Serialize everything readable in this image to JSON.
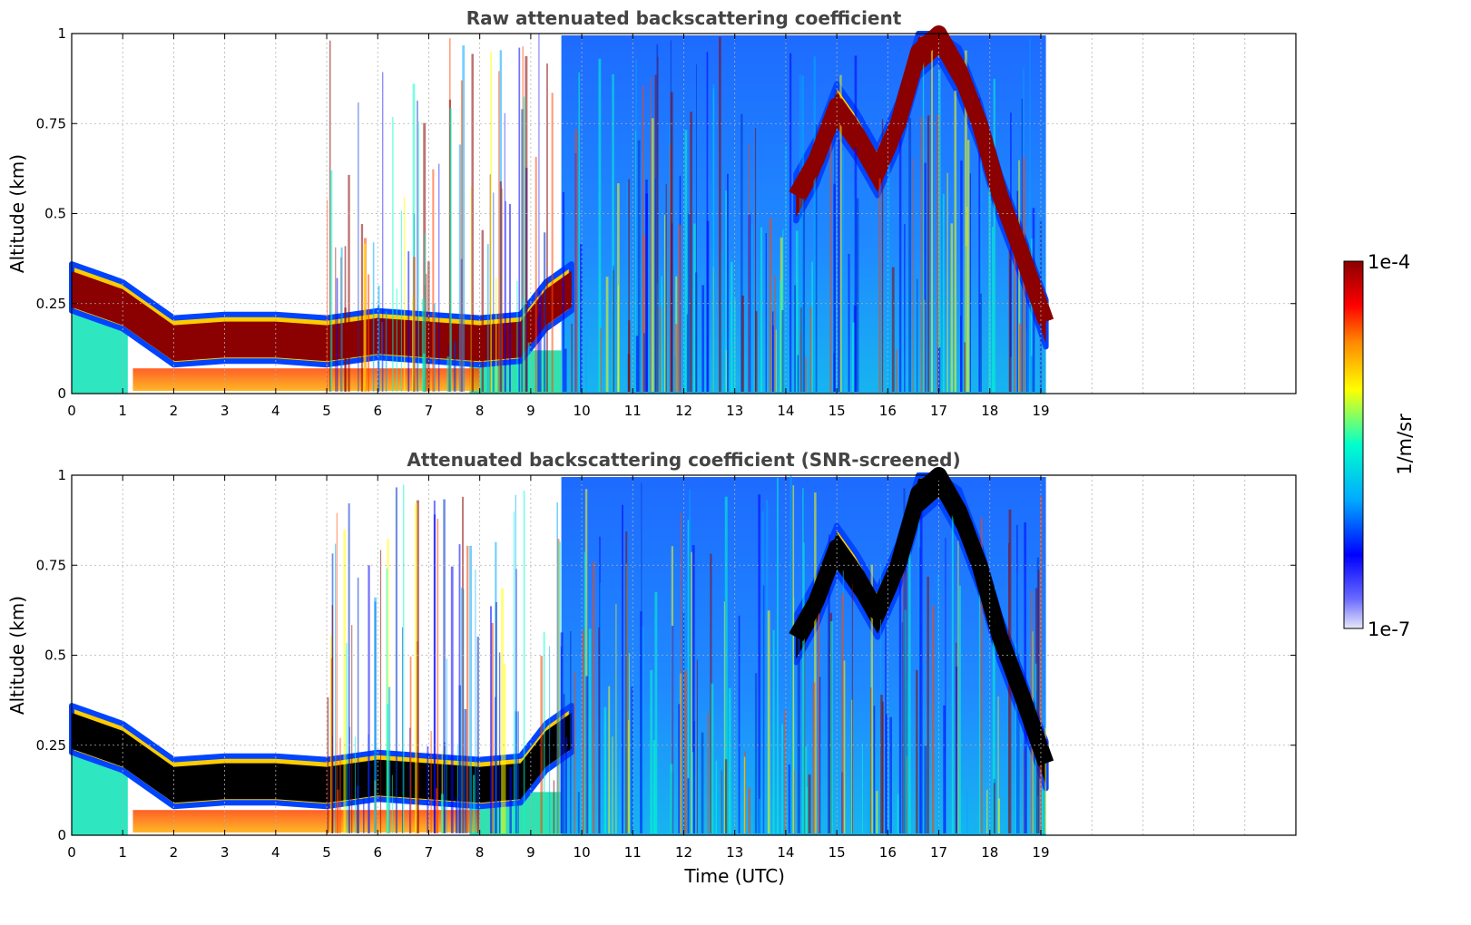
{
  "chart_data": [
    {
      "type": "heatmap",
      "title": "Raw attenuated backscattering coefficient",
      "xlabel": "",
      "ylabel": "Altitude (km)",
      "xlim": [
        0,
        24
      ],
      "ylim": [
        0,
        1
      ],
      "x_ticks": [
        "0",
        "1",
        "2",
        "3",
        "4",
        "5",
        "6",
        "7",
        "8",
        "9",
        "10",
        "11",
        "12",
        "13",
        "14",
        "15",
        "16",
        "17",
        "18",
        "19"
      ],
      "y_ticks": [
        "0",
        "0.25",
        "0.5",
        "0.75",
        "1"
      ],
      "grid": true,
      "data_end_time": 19.1,
      "layers": [
        {
          "name": "boundary-layer",
          "color": "#8b0000",
          "points": [
            [
              0,
              0.3
            ],
            [
              1,
              0.25
            ],
            [
              2,
              0.15
            ],
            [
              3,
              0.16
            ],
            [
              4,
              0.16
            ],
            [
              5,
              0.15
            ],
            [
              6,
              0.17
            ],
            [
              7,
              0.16
            ],
            [
              8,
              0.15
            ],
            [
              8.8,
              0.16
            ],
            [
              9.3,
              0.25
            ],
            [
              9.8,
              0.3
            ]
          ]
        },
        {
          "name": "cloud-layer",
          "color": "#8b0000",
          "points": [
            [
              14.2,
              0.55
            ],
            [
              14.6,
              0.65
            ],
            [
              15,
              0.8
            ],
            [
              15.4,
              0.72
            ],
            [
              15.8,
              0.62
            ],
            [
              16.2,
              0.75
            ],
            [
              16.6,
              0.95
            ],
            [
              17,
              1.0
            ],
            [
              17.4,
              0.9
            ],
            [
              17.8,
              0.75
            ],
            [
              18.2,
              0.55
            ],
            [
              18.6,
              0.4
            ],
            [
              19.1,
              0.2
            ]
          ]
        }
      ]
    },
    {
      "type": "heatmap",
      "title": "Attenuated backscattering coefficient (SNR-screened)",
      "xlabel": "Time (UTC)",
      "ylabel": "Altitude (km)",
      "xlim": [
        0,
        24
      ],
      "ylim": [
        0,
        1
      ],
      "x_ticks": [
        "0",
        "1",
        "2",
        "3",
        "4",
        "5",
        "6",
        "7",
        "8",
        "9",
        "10",
        "11",
        "12",
        "13",
        "14",
        "15",
        "16",
        "17",
        "18",
        "19"
      ],
      "y_ticks": [
        "0",
        "0.25",
        "0.5",
        "0.75",
        "1"
      ],
      "grid": true,
      "data_end_time": 19.1,
      "layers": [
        {
          "name": "boundary-layer",
          "color": "#000000",
          "points": [
            [
              0,
              0.3
            ],
            [
              1,
              0.25
            ],
            [
              2,
              0.15
            ],
            [
              3,
              0.16
            ],
            [
              4,
              0.16
            ],
            [
              5,
              0.15
            ],
            [
              6,
              0.17
            ],
            [
              7,
              0.16
            ],
            [
              8,
              0.15
            ],
            [
              8.8,
              0.16
            ],
            [
              9.3,
              0.25
            ],
            [
              9.8,
              0.3
            ]
          ]
        },
        {
          "name": "cloud-layer",
          "color": "#000000",
          "points": [
            [
              14.2,
              0.55
            ],
            [
              14.6,
              0.65
            ],
            [
              15,
              0.8
            ],
            [
              15.4,
              0.72
            ],
            [
              15.8,
              0.62
            ],
            [
              16.2,
              0.75
            ],
            [
              16.6,
              0.95
            ],
            [
              17,
              1.0
            ],
            [
              17.4,
              0.9
            ],
            [
              17.8,
              0.75
            ],
            [
              18.2,
              0.55
            ],
            [
              18.6,
              0.4
            ],
            [
              19.1,
              0.2
            ]
          ]
        }
      ]
    }
  ],
  "colorbar": {
    "label": "1/m/sr",
    "max_label": "1e-4",
    "min_label": "1e-7",
    "scale": "log",
    "colors": [
      "#e8e8f8",
      "#0000ff",
      "#00aaff",
      "#00ffcc",
      "#ffff00",
      "#ff8800",
      "#ff0000",
      "#8b0000"
    ]
  }
}
